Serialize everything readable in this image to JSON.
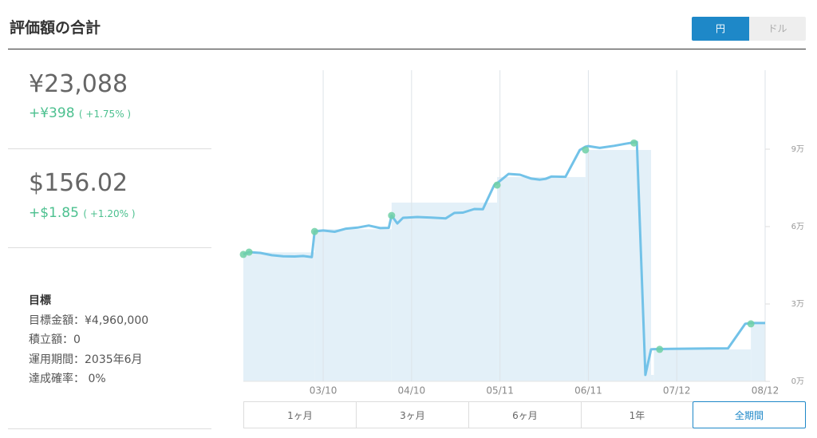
{
  "header": {
    "title": "評価額の合計",
    "currency_toggle": [
      "円",
      "ドル"
    ]
  },
  "summary": [
    {
      "amount": "¥23,088",
      "change": "+¥398",
      "change_percent": "( +1.75% )"
    },
    {
      "amount": "$156.02",
      "change": "+$1.85",
      "change_percent": "( +1.20% )"
    }
  ],
  "goal": {
    "title": "目標",
    "items": [
      "目標金額：¥4,960,000",
      "積立額：0",
      "運用期間：2035年6月",
      "達成確率： 0%"
    ]
  },
  "period_buttons": [
    "1ヶ月",
    "3ヶ月",
    "6ヶ月",
    "1年",
    "全期間"
  ],
  "chart_data": {
    "type": "line",
    "color": "#72c2e8",
    "x": [
      "02/10",
      "02/12",
      "02/16",
      "02/20",
      "02/24",
      "02/28",
      "03/03",
      "03/06",
      "03/07",
      "03/10",
      "03/14",
      "03/18",
      "03/22",
      "03/26",
      "03/30",
      "04/02",
      "04/03",
      "04/05",
      "04/07",
      "04/12",
      "04/17",
      "04/22",
      "04/25",
      "04/28",
      "05/02",
      "05/05",
      "05/09",
      "05/10",
      "05/14",
      "05/18",
      "05/22",
      "05/25",
      "05/27",
      "05/29",
      "06/03",
      "06/08",
      "06/10",
      "06/11",
      "06/15",
      "06/20",
      "06/24",
      "06/28",
      "07/01",
      "07/03",
      "07/04",
      "07/10",
      "07/20",
      "07/30",
      "08/05",
      "08/07",
      "08/12"
    ],
    "values": [
      49200,
      50100,
      49800,
      48900,
      48500,
      48400,
      48600,
      48200,
      58100,
      58500,
      58000,
      59200,
      59600,
      60400,
      59400,
      59500,
      64300,
      61200,
      63400,
      63700,
      63500,
      63200,
      65300,
      65400,
      66800,
      66700,
      76100,
      76800,
      80400,
      80100,
      78600,
      78200,
      78500,
      79400,
      79300,
      89700,
      91000,
      91200,
      90500,
      91300,
      92100,
      92800,
      2500,
      12400,
      12500,
      12600,
      12700,
      12800,
      22300,
      22600,
      22600
    ],
    "area": {
      "color": "#e3f0f8",
      "x": [
        "02/10",
        "03/07",
        "04/03",
        "05/10",
        "06/10",
        "07/02",
        "07/03",
        "07/04",
        "08/07",
        "08/12"
      ],
      "values": [
        50000,
        59000,
        69300,
        79200,
        89700,
        89700,
        2500,
        12400,
        22300,
        22600
      ]
    },
    "markers": {
      "color": "#6fd0a6",
      "x": [
        "02/10",
        "02/12",
        "03/07",
        "04/03",
        "05/10",
        "06/10",
        "06/27",
        "07/06",
        "08/07"
      ],
      "values": [
        49200,
        50100,
        58100,
        64300,
        76100,
        89700,
        92400,
        12400,
        22300
      ]
    },
    "xlim": [
      "02/10",
      "08/12"
    ],
    "xticks": [
      "03/10",
      "04/10",
      "05/11",
      "06/11",
      "07/12",
      "08/12"
    ],
    "ylim": [
      0,
      120000
    ],
    "yticks": [
      {
        "value": 0,
        "label": "0万"
      },
      {
        "value": 30000,
        "label": "3万"
      },
      {
        "value": 60000,
        "label": "6万"
      },
      {
        "value": 90000,
        "label": "9万"
      }
    ],
    "grid": "x"
  }
}
